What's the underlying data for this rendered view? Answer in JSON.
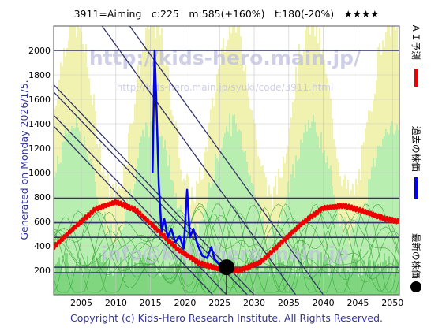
{
  "header": {
    "title": "3911=Aiming　c:225　m:585(+160%)　t:180(-20%)　★★★★"
  },
  "watermarks": {
    "url_big": "http://kids-hero.main.jp/",
    "url_small": "http://kids-hero.main.jp/syuki/code/3911.html",
    "email": "info@kids-hero.main.jp"
  },
  "side_label": "Generated on Monday 2026/1/5.",
  "footer": "Copyright (c) Kids-Hero Research Institute. All Rights Reserved.",
  "colors": {
    "band_yellow": "#f2f2b0",
    "band_light_green": "#b8eeb0",
    "band_green": "#7fd67f",
    "price": "#0000ee",
    "forecast": "#ee0000",
    "trend": "#333366",
    "grid": "#c8c8c8",
    "frame": "#555555"
  },
  "chart_data": {
    "type": "line",
    "xlabel": "",
    "ylabel": "",
    "xlim": [
      2001,
      2051
    ],
    "ylim": [
      0,
      2200
    ],
    "x_ticks": [
      2005,
      2010,
      2015,
      2020,
      2025,
      2030,
      2035,
      2040,
      2045,
      2050
    ],
    "y_ticks": [
      200,
      400,
      600,
      800,
      1000,
      1200,
      1400,
      1600,
      1800,
      2000
    ],
    "legend_position": "right (vertical)",
    "legend": [
      {
        "name": "ＡＩ予測",
        "color": "#ee0000",
        "marker": "line"
      },
      {
        "name": "過去の株価",
        "color": "#0000ee",
        "marker": "line"
      },
      {
        "name": "最新の株価",
        "color": "#000000",
        "marker": "dot"
      }
    ],
    "series": [
      {
        "name": "ＡＩ予測",
        "x": [
          2001,
          2004,
          2007,
          2010,
          2013,
          2016,
          2019,
          2022,
          2025,
          2028,
          2031,
          2034,
          2037,
          2040,
          2043,
          2046,
          2049,
          2051
        ],
        "values": [
          390,
          550,
          700,
          760,
          690,
          530,
          370,
          260,
          210,
          200,
          270,
          430,
          590,
          710,
          730,
          680,
          620,
          600
        ]
      },
      {
        "name": "過去の株価",
        "x": [
          2015.3,
          2015.6,
          2015.9,
          2016.2,
          2016.6,
          2017.0,
          2017.5,
          2018.0,
          2018.6,
          2019.2,
          2019.8,
          2020.3,
          2020.7,
          2021.2,
          2021.8,
          2022.5,
          2023.2,
          2023.8,
          2024.3,
          2024.8,
          2025.4,
          2025.8
        ],
        "values": [
          1000,
          2000,
          1500,
          900,
          520,
          620,
          470,
          540,
          430,
          480,
          380,
          860,
          470,
          540,
          410,
          320,
          300,
          390,
          290,
          260,
          240,
          225
        ]
      }
    ],
    "latest": {
      "x": 2026.0,
      "value": 225
    },
    "horizontal_levels": [
      2000,
      790,
      590,
      470,
      225,
      180
    ]
  }
}
